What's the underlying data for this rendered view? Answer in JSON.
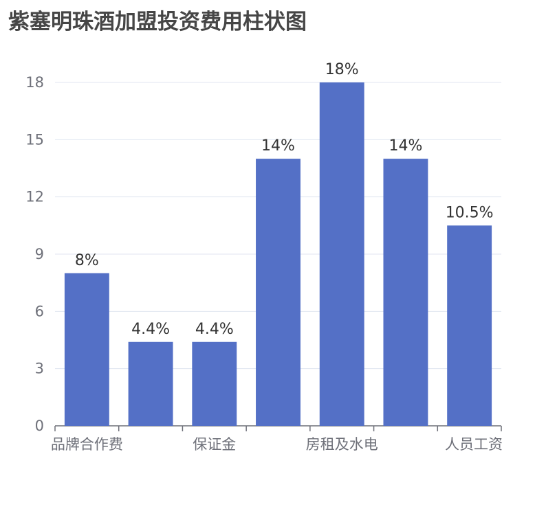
{
  "title": "紫塞明珠酒加盟投资费用柱状图",
  "colors": {
    "bar": "#5470c6",
    "grid": "#e0e6f1",
    "axis": "#6e7079"
  },
  "chart_data": {
    "type": "bar",
    "categories": [
      "品牌合作费",
      "",
      "保证金",
      "",
      "房租及水电",
      "",
      "人员工资"
    ],
    "values": [
      8,
      4.4,
      4.4,
      14,
      18,
      14,
      10.5
    ],
    "data_labels": [
      "8%",
      "4.4%",
      "4.4%",
      "14%",
      "18%",
      "14%",
      "10.5%"
    ],
    "yticks": [
      "0",
      "3",
      "6",
      "9",
      "12",
      "15",
      "18"
    ],
    "ylim": [
      0,
      18
    ],
    "grid": true,
    "legend": "none"
  }
}
